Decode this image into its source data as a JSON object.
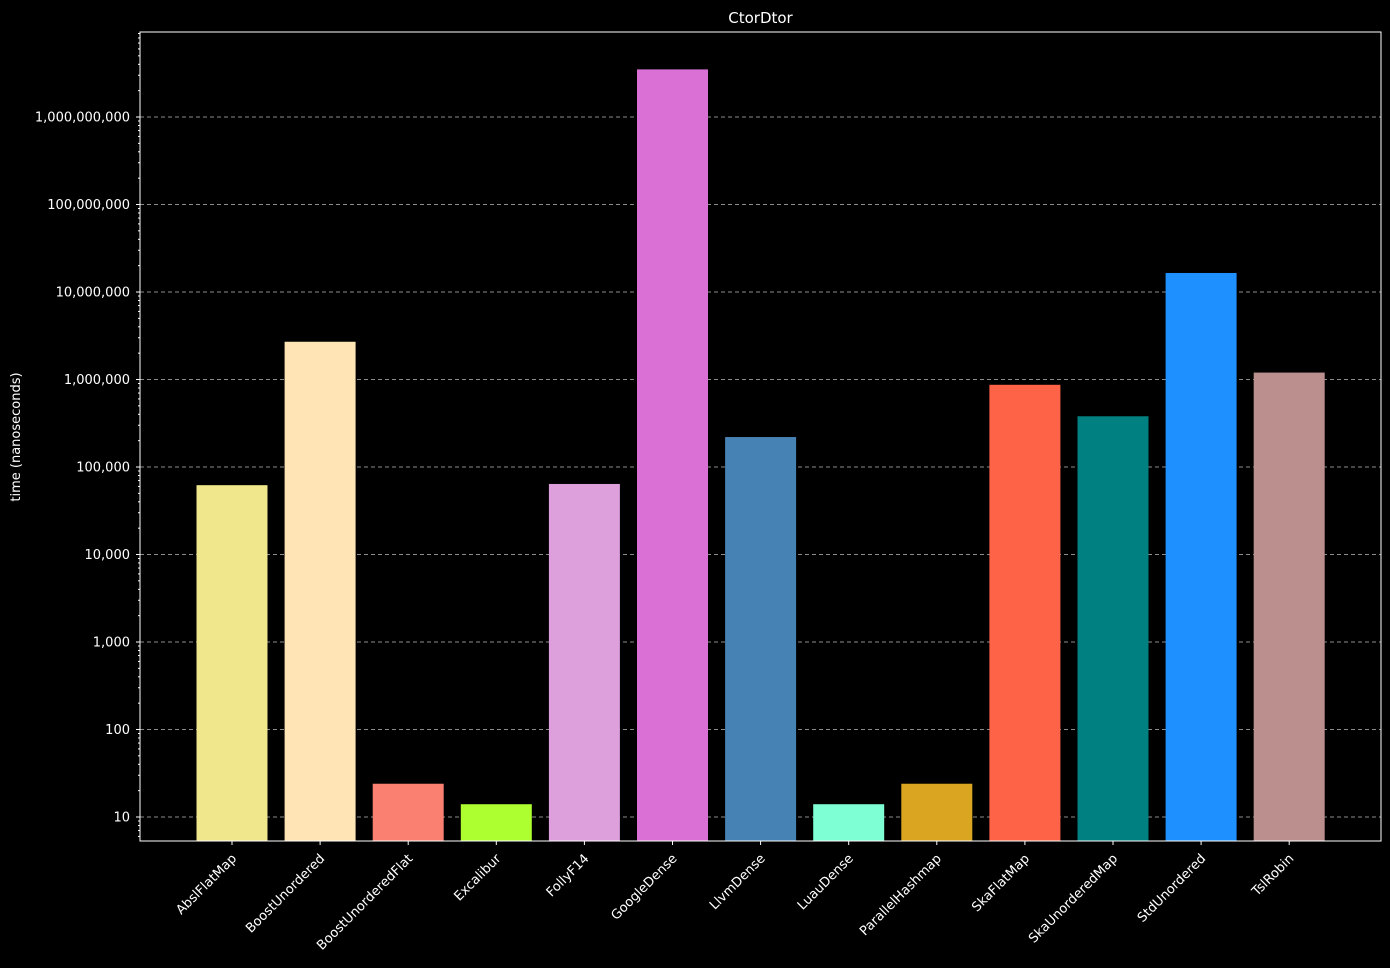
{
  "chart_data": {
    "type": "bar",
    "title": "CtorDtor",
    "xlabel": "",
    "ylabel": "time (nanoseconds)",
    "yscale": "log",
    "ylim": [
      5.3,
      9000000000
    ],
    "grid": true,
    "legend": "none",
    "y_ticks": [
      10,
      100,
      1000,
      10000,
      100000,
      1000000,
      10000000,
      100000000,
      1000000000
    ],
    "y_tick_labels": [
      "10",
      "100",
      "1,000",
      "10,000",
      "100,000",
      "1,000,000",
      "10,000,000",
      "100,000,000",
      "1,000,000,000"
    ],
    "categories": [
      "AbslFlatMap",
      "BoostUnordered",
      "BoostUnorderedFlat",
      "Excalibur",
      "FollyF14",
      "GoogleDense",
      "LlvmDense",
      "LuauDense",
      "ParallelHashmap",
      "SkaFlatMap",
      "SkaUnorderedMap",
      "StdUnordered",
      "TslRobin"
    ],
    "values": [
      62000,
      2700000,
      24,
      14,
      64000,
      3500000000,
      220000,
      14,
      24,
      870000,
      380000,
      16500000,
      1200000
    ],
    "colors": [
      "#f0e68c",
      "#ffe4b5",
      "#fa8072",
      "#adff2f",
      "#dda0dd",
      "#da70d6",
      "#4682b4",
      "#7fffd4",
      "#daa520",
      "#ff6347",
      "#008080",
      "#1e90ff",
      "#bc8f8f"
    ],
    "background": "#000000",
    "foreground": "#ffffff",
    "grid_color": "#8c8c8c"
  }
}
